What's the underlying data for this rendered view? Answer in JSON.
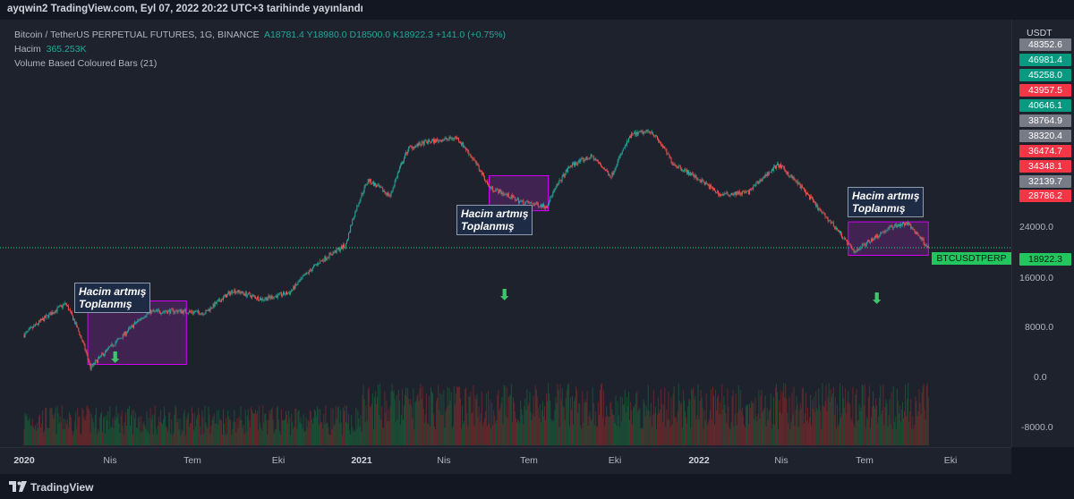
{
  "header": {
    "caption": "ayqwin2 TradingView.com, Eyl 07, 2022 20:22 UTC+3 tarihinde yayınlandı"
  },
  "legend": {
    "symbol": "Bitcoin / TetherUS PERPETUAL FUTURES, 1G, BINANCE",
    "ohlc": "A18781.4  Y18980.0  D18500.0  K18922.3  +141.0 (+0.75%)",
    "volume_label": "Hacim",
    "volume_value": "365.253K",
    "indicator": "Volume Based Coloured Bars (21)"
  },
  "annotations": [
    {
      "text": "Hacim artmış\nToplanmış"
    },
    {
      "text": "Hacim artmış\nToplanmış"
    },
    {
      "text": "Hacim artmış\nToplanmış"
    }
  ],
  "arrows": [
    "⬇",
    "⬇",
    "⬇"
  ],
  "price_axis": {
    "currency": "USDT",
    "ticks": [
      "24000.0",
      "16000.0",
      "8000.0",
      "0.0",
      "-8000.0"
    ],
    "levels": [
      {
        "value": "48352.6",
        "color": "#787b86"
      },
      {
        "value": "46981.4",
        "color": "#089981"
      },
      {
        "value": "45258.0",
        "color": "#089981"
      },
      {
        "value": "43957.5",
        "color": "#f23645"
      },
      {
        "value": "40646.1",
        "color": "#089981"
      },
      {
        "value": "38764.9",
        "color": "#787b86"
      },
      {
        "value": "38320.4",
        "color": "#787b86"
      },
      {
        "value": "36474.7",
        "color": "#f23645"
      },
      {
        "value": "34348.1",
        "color": "#f23645"
      },
      {
        "value": "32139.7",
        "color": "#787b86"
      },
      {
        "value": "28786.2",
        "color": "#f23645"
      }
    ],
    "current_symbol": "BTCUSDTPERP",
    "current_price": "18922.3",
    "current_color": "#22c55e"
  },
  "time_axis": [
    {
      "label": "2020",
      "bold": true
    },
    {
      "label": "Nis",
      "bold": false
    },
    {
      "label": "Tem",
      "bold": false
    },
    {
      "label": "Eki",
      "bold": false
    },
    {
      "label": "2021",
      "bold": true
    },
    {
      "label": "Nis",
      "bold": false
    },
    {
      "label": "Tem",
      "bold": false
    },
    {
      "label": "Eki",
      "bold": false
    },
    {
      "label": "2022",
      "bold": true
    },
    {
      "label": "Nis",
      "bold": false
    },
    {
      "label": "Tem",
      "bold": false
    },
    {
      "label": "Eki",
      "bold": false
    }
  ],
  "footer": {
    "brand": "TradingView"
  },
  "chart_data": {
    "type": "candlestick",
    "ylabel": "USDT",
    "price_scale_note": "non-linear (log-like) price scale",
    "x_range": [
      "2020-01",
      "2022-09-07"
    ],
    "close_series": [
      [
        "2020-01-01",
        7200
      ],
      [
        "2020-02-15",
        10200
      ],
      [
        "2020-03-13",
        5000
      ],
      [
        "2020-04-15",
        7000
      ],
      [
        "2020-05-15",
        9300
      ],
      [
        "2020-06-15",
        9400
      ],
      [
        "2020-07-15",
        9200
      ],
      [
        "2020-08-15",
        11800
      ],
      [
        "2020-09-15",
        10700
      ],
      [
        "2020-10-15",
        11500
      ],
      [
        "2020-11-15",
        16000
      ],
      [
        "2020-12-15",
        19500
      ],
      [
        "2021-01-08",
        40000
      ],
      [
        "2021-02-01",
        33500
      ],
      [
        "2021-02-21",
        57000
      ],
      [
        "2021-03-13",
        61000
      ],
      [
        "2021-04-14",
        64000
      ],
      [
        "2021-05-19",
        37000
      ],
      [
        "2021-06-22",
        31500
      ],
      [
        "2021-07-20",
        30000
      ],
      [
        "2021-08-15",
        47000
      ],
      [
        "2021-09-07",
        52000
      ],
      [
        "2021-09-28",
        41500
      ],
      [
        "2021-10-20",
        66000
      ],
      [
        "2021-11-10",
        69000
      ],
      [
        "2021-12-04",
        48000
      ],
      [
        "2022-01-24",
        34000
      ],
      [
        "2022-02-24",
        35000
      ],
      [
        "2022-03-28",
        47500
      ],
      [
        "2022-05-12",
        28500
      ],
      [
        "2022-06-18",
        18000
      ],
      [
        "2022-07-30",
        24000
      ],
      [
        "2022-08-15",
        24800
      ],
      [
        "2022-09-07",
        18922.3
      ]
    ],
    "current_price": 18922.3,
    "volume_series_note": "daily volume histogram, green/red"
  }
}
